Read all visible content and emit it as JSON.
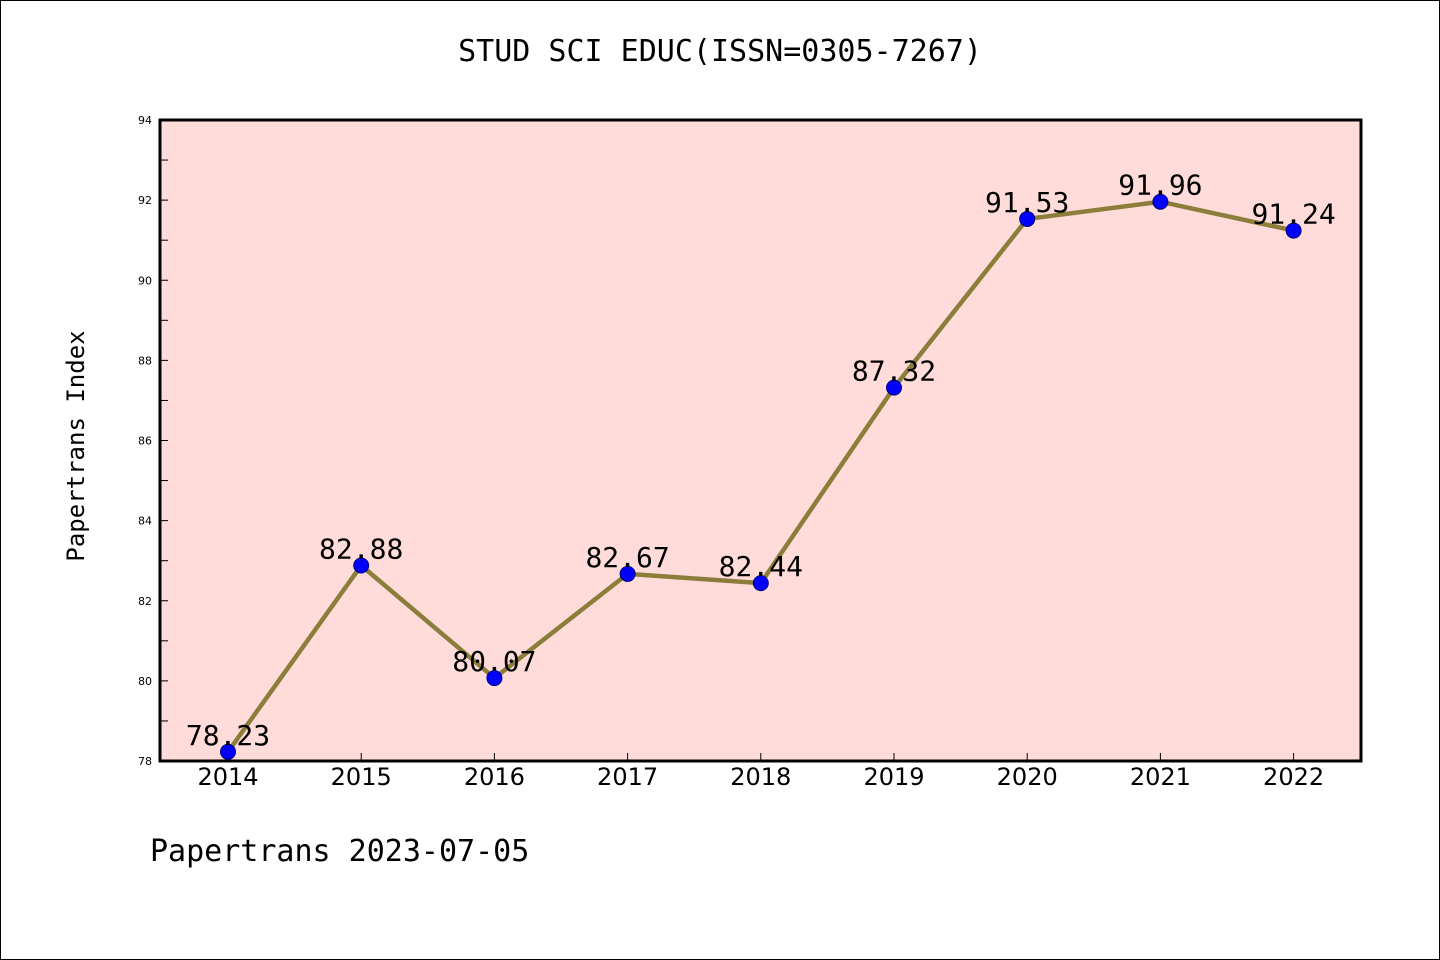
{
  "page": {
    "title": "STUD SCI EDUC(ISSN=0305-7267)",
    "footer": "Papertrans 2023-07-05"
  },
  "chart_data": {
    "type": "line",
    "title": "STUD SCI EDUC(ISSN=0305-7267)",
    "xlabel": "",
    "ylabel": "Papertrans Index",
    "categories": [
      "2014",
      "2015",
      "2016",
      "2017",
      "2018",
      "2019",
      "2020",
      "2021",
      "2022"
    ],
    "series": [
      {
        "values": [
          78.23,
          82.88,
          80.07,
          82.67,
          82.44,
          87.32,
          91.53,
          91.96,
          91.24
        ],
        "labels": [
          "78.23",
          "82.88",
          "80.07",
          "82.67",
          "82.44",
          "87.32",
          "91.53",
          "91.96",
          "91.24"
        ],
        "line_color": "#8b7d3a",
        "marker_color": "#0000ff"
      }
    ],
    "ylim": [
      78,
      94
    ],
    "yticks": [
      78,
      80,
      82,
      84,
      86,
      88,
      90,
      92,
      94
    ],
    "ytick_labels": [
      "78",
      "80",
      "82",
      "84",
      "86",
      "88",
      "90",
      "92",
      "94"
    ],
    "plot_background": "#ffdcd9",
    "grid": false,
    "legend": false
  }
}
